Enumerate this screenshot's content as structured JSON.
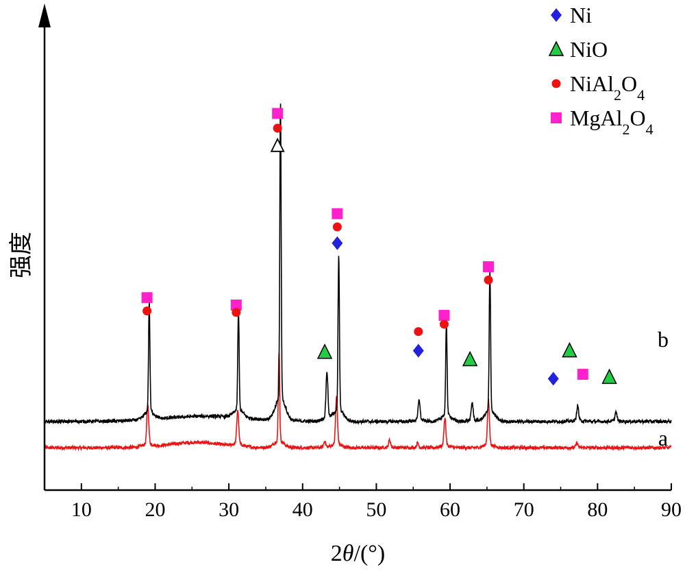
{
  "chart_data": {
    "type": "line",
    "title": "",
    "xlabel": {
      "prefix": "2",
      "var": "θ",
      "suffix": "/(°)"
    },
    "ylabel": "强度",
    "xlim": [
      5,
      90
    ],
    "xticks": [
      10,
      20,
      30,
      40,
      50,
      60,
      70,
      80,
      90
    ],
    "grid": false,
    "legend_position": "top-right",
    "legend": [
      {
        "marker": "diamond",
        "color": "#2222dd",
        "label": "Ni",
        "sub": []
      },
      {
        "marker": "triangle",
        "color": "#22cc44",
        "label": "NiO",
        "sub": []
      },
      {
        "marker": "circle",
        "color": "#ee1111",
        "label": "NiAl2O4",
        "sub": [
          "Ni",
          "Al",
          "2",
          "O",
          "4"
        ]
      },
      {
        "marker": "square",
        "color": "#ff22cc",
        "label": "MgAl2O4",
        "sub": [
          "Mg",
          "Al",
          "2",
          "O",
          "4"
        ]
      }
    ],
    "series": [
      {
        "name": "a",
        "color": "#ee1111",
        "baseline": 0.32,
        "hump": {
          "center": 25.5,
          "height": 0.12,
          "width": 5
        },
        "peaks": [
          {
            "x": 19.0,
            "h": 2.7
          },
          {
            "x": 31.2,
            "h": 2.3
          },
          {
            "x": 36.8,
            "h": 6.1
          },
          {
            "x": 43.0,
            "h": 0.4
          },
          {
            "x": 44.6,
            "h": 3.2
          },
          {
            "x": 51.8,
            "h": 0.5
          },
          {
            "x": 55.6,
            "h": 0.3
          },
          {
            "x": 59.3,
            "h": 1.9
          },
          {
            "x": 65.2,
            "h": 3.0
          },
          {
            "x": 77.2,
            "h": 0.3
          }
        ]
      },
      {
        "name": "b",
        "color": "#000000",
        "baseline": 2.1,
        "hump": {
          "center": 27,
          "height": 0.12,
          "width": 8
        },
        "peaks": [
          {
            "x": 19.2,
            "h": 7.4
          },
          {
            "x": 31.3,
            "h": 6.8
          },
          {
            "x": 37.0,
            "h": 20.1
          },
          {
            "x": 43.3,
            "h": 3.1
          },
          {
            "x": 44.9,
            "h": 10.5
          },
          {
            "x": 55.8,
            "h": 1.4
          },
          {
            "x": 59.5,
            "h": 6.2
          },
          {
            "x": 63.0,
            "h": 1.2
          },
          {
            "x": 65.4,
            "h": 9.6
          },
          {
            "x": 77.3,
            "h": 1.0
          },
          {
            "x": 82.5,
            "h": 0.6
          }
        ]
      }
    ],
    "annotations": [
      {
        "marker": "square",
        "x": 18.9,
        "y": 10.5
      },
      {
        "marker": "circle",
        "x": 18.9,
        "y": 9.6
      },
      {
        "marker": "square",
        "x": 31.0,
        "y": 10.0
      },
      {
        "marker": "circle",
        "x": 31.0,
        "y": 9.5
      },
      {
        "marker": "square",
        "x": 36.6,
        "y": 23.0
      },
      {
        "marker": "circle",
        "x": 36.6,
        "y": 22.0
      },
      {
        "marker": "triangle-open",
        "x": 36.6,
        "y": 20.8
      },
      {
        "marker": "square",
        "x": 44.7,
        "y": 16.2
      },
      {
        "marker": "circle",
        "x": 44.7,
        "y": 15.3
      },
      {
        "marker": "diamond",
        "x": 44.7,
        "y": 14.2
      },
      {
        "marker": "triangle",
        "x": 43.0,
        "y": 6.8
      },
      {
        "marker": "circle",
        "x": 55.7,
        "y": 8.2
      },
      {
        "marker": "diamond",
        "x": 55.7,
        "y": 6.9
      },
      {
        "marker": "square",
        "x": 59.2,
        "y": 9.3
      },
      {
        "marker": "circle",
        "x": 59.2,
        "y": 8.7
      },
      {
        "marker": "triangle",
        "x": 62.7,
        "y": 6.3
      },
      {
        "marker": "square",
        "x": 65.2,
        "y": 12.6
      },
      {
        "marker": "circle",
        "x": 65.2,
        "y": 11.7
      },
      {
        "marker": "diamond",
        "x": 74.0,
        "y": 5.0
      },
      {
        "marker": "triangle",
        "x": 76.2,
        "y": 6.9
      },
      {
        "marker": "square",
        "x": 78.0,
        "y": 5.3
      },
      {
        "marker": "triangle",
        "x": 81.6,
        "y": 5.1
      }
    ]
  }
}
